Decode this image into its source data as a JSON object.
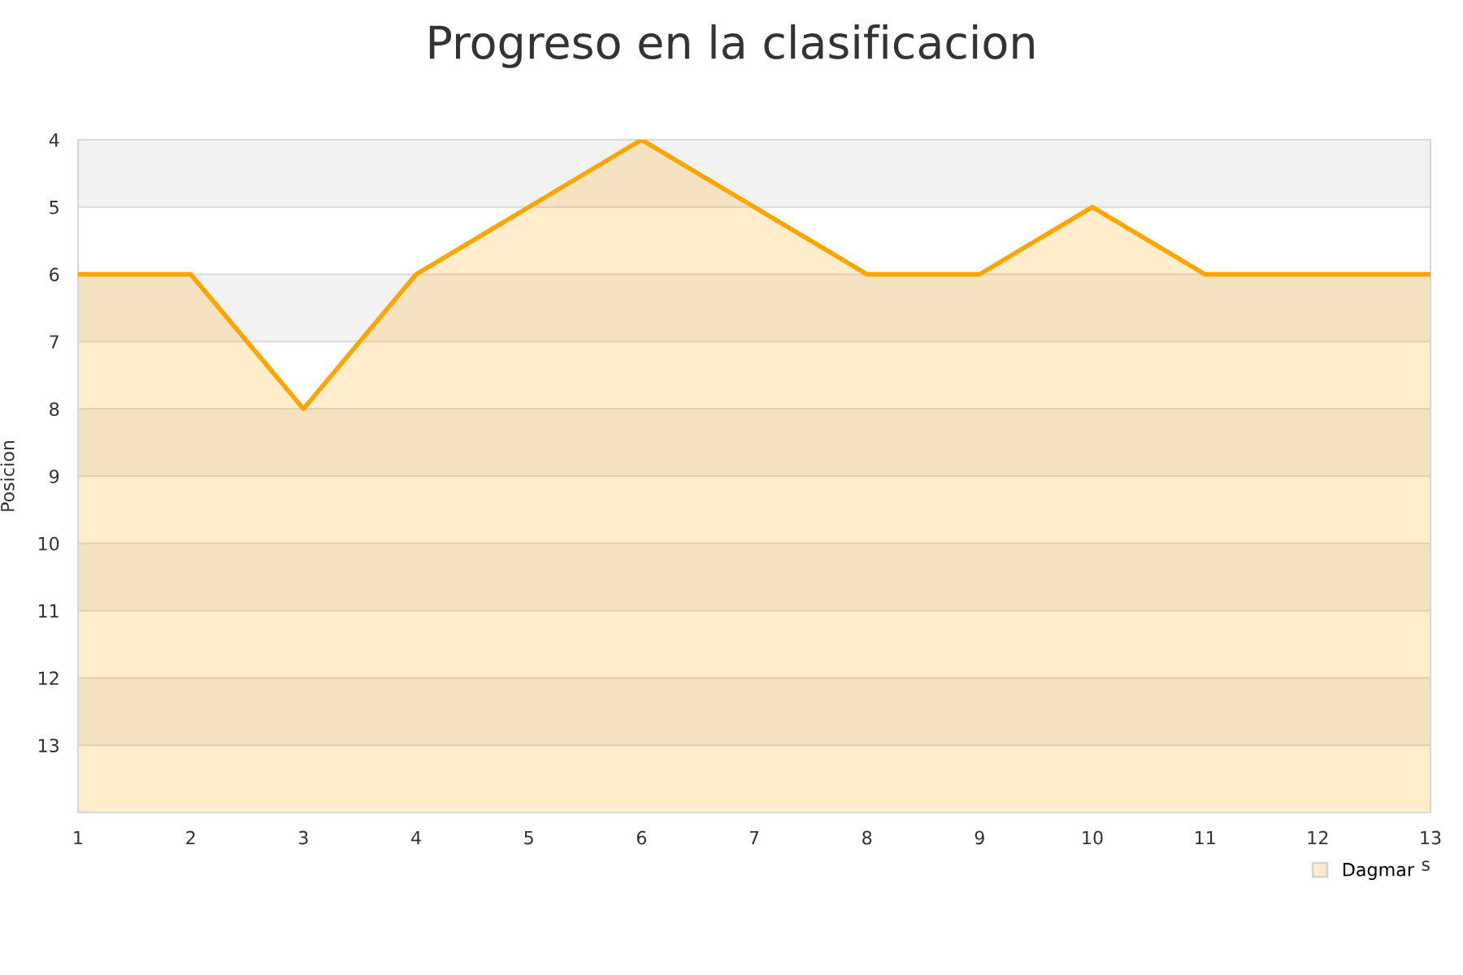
{
  "chart_data": {
    "type": "line",
    "title": "Progreso en la clasificacion",
    "ylabel": "Posicion",
    "xlabel": "s",
    "x": [
      1,
      2,
      3,
      4,
      5,
      6,
      7,
      8,
      9,
      10,
      11,
      12,
      13
    ],
    "series": [
      {
        "name": "Dagmar",
        "color": "#ffa500",
        "values": [
          6,
          6,
          8,
          6,
          5,
          4,
          5,
          6,
          6,
          5,
          6,
          6,
          6
        ],
        "lower": [
          6,
          6,
          8,
          6,
          5,
          4,
          5,
          6,
          6,
          5,
          6,
          6,
          6
        ],
        "upper": [
          14,
          14,
          14,
          14,
          14,
          14,
          14,
          14,
          14,
          14,
          14,
          14,
          14
        ]
      }
    ],
    "xlim": [
      1,
      13
    ],
    "xticks": [
      1,
      2,
      3,
      4,
      5,
      6,
      7,
      8,
      9,
      10,
      11,
      12,
      13
    ],
    "ylim": [
      14,
      4
    ],
    "yticks": [
      4,
      5,
      6,
      7,
      8,
      9,
      10,
      11,
      12,
      13
    ],
    "bands": [
      {
        "axis": "y",
        "from": 4,
        "to": 5,
        "color": "#f2f2f2"
      },
      {
        "axis": "y",
        "from": 6,
        "to": 7,
        "color": "#f2f2f2"
      },
      {
        "axis": "y",
        "from": 8,
        "to": 9,
        "color": "#f2f2f2"
      },
      {
        "axis": "y",
        "from": 10,
        "to": 11,
        "color": "#f2f2f2"
      },
      {
        "axis": "y",
        "from": 12,
        "to": 13,
        "color": "#f2f2f2"
      }
    ],
    "grid": "y",
    "legend": "bottom right",
    "marker": "none",
    "line_style": "solid"
  }
}
